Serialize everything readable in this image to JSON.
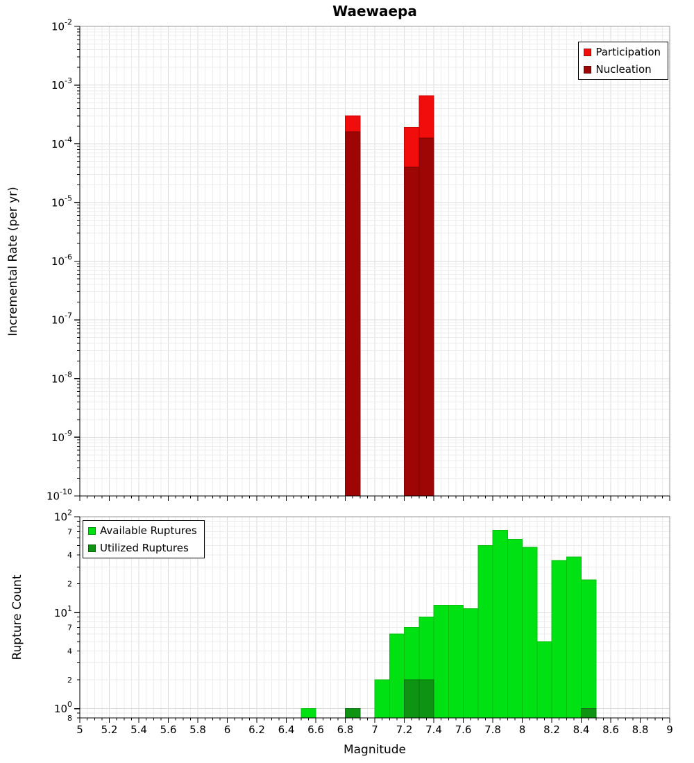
{
  "title": "Waewaepa",
  "colors": {
    "participation": "#f20d0d",
    "participation_border": "#c50404",
    "nucleation": "#9e0505",
    "nucleation_border": "#7c0303",
    "available": "#00e114",
    "available_border": "#09bb10",
    "utilized": "#0e9412",
    "utilized_border": "#0b6f0d",
    "grid_minor": "#ececec",
    "grid_major": "#dbdbdb",
    "frame": "#9a9a9a",
    "axis": "#000000"
  },
  "chart_data": [
    {
      "type": "bar",
      "title": "Waewaepa",
      "xlabel": "",
      "ylabel": "Incremental Rate (per yr)",
      "xlim": [
        5,
        9
      ],
      "ylim": [
        1e-10,
        0.01
      ],
      "y_scale": "log",
      "x_tick_step": 0.2,
      "bin_width": 0.1,
      "grid": true,
      "legend_position": "top-right",
      "legend": [
        {
          "label": "Participation",
          "color_key": "participation"
        },
        {
          "label": "Nucleation",
          "color_key": "nucleation"
        }
      ],
      "series": [
        {
          "name": "Participation",
          "color_key": "participation",
          "border_key": "participation_border",
          "bins": [
            6.8,
            7.2,
            7.3
          ],
          "values": [
            0.0003,
            0.00019,
            0.00066
          ]
        },
        {
          "name": "Nucleation",
          "color_key": "nucleation",
          "border_key": "nucleation_border",
          "bins": [
            6.8,
            7.2,
            7.3
          ],
          "values": [
            0.00016,
            4e-05,
            0.000125
          ]
        }
      ]
    },
    {
      "type": "bar",
      "title": "",
      "xlabel": "Magnitude",
      "ylabel": "Rupture Count",
      "xlim": [
        5,
        9
      ],
      "ylim": [
        0.8,
        100
      ],
      "y_scale": "log",
      "x_tick_step": 0.2,
      "bin_width": 0.1,
      "grid": true,
      "legend_position": "top-left",
      "legend": [
        {
          "label": "Available Ruptures",
          "color_key": "available"
        },
        {
          "label": "Utilized Ruptures",
          "color_key": "utilized"
        }
      ],
      "series": [
        {
          "name": "Available Ruptures",
          "color_key": "available",
          "border_key": "available_border",
          "bins": [
            6.5,
            6.8,
            7.0,
            7.1,
            7.2,
            7.3,
            7.4,
            7.5,
            7.6,
            7.7,
            7.8,
            7.9,
            8.0,
            8.1,
            8.2,
            8.3,
            8.4
          ],
          "values": [
            1,
            1,
            2,
            6,
            7,
            9,
            12,
            12,
            11,
            50,
            72,
            58,
            48,
            5,
            35,
            38,
            22
          ]
        },
        {
          "name": "Utilized Ruptures",
          "color_key": "utilized",
          "border_key": "utilized_border",
          "bins": [
            6.8,
            7.2,
            7.3,
            8.4
          ],
          "values": [
            1,
            2,
            2,
            1
          ]
        }
      ]
    }
  ]
}
